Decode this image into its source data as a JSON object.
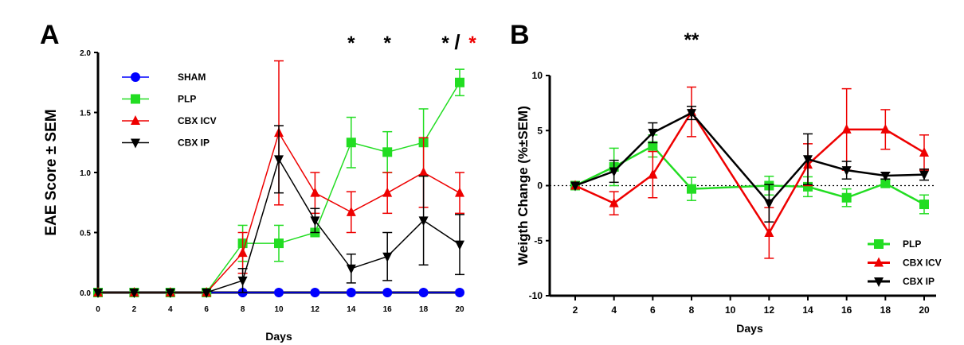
{
  "chart_data": [
    {
      "panel_label": "A",
      "type": "line",
      "xlabel": "Days",
      "ylabel": "EAE Score ± SEM",
      "x": [
        0,
        2,
        4,
        6,
        8,
        10,
        12,
        14,
        16,
        18,
        20
      ],
      "xticks": [
        "0",
        "2",
        "4",
        "6",
        "8",
        "10",
        "12",
        "14",
        "16",
        "18",
        "20"
      ],
      "yticks": [
        "0.0",
        "0.5",
        "1.0",
        "1.5",
        "2.0"
      ],
      "ylim": [
        0,
        2
      ],
      "xlim": [
        0,
        20
      ],
      "legend_position": "top-left",
      "series": [
        {
          "name": "SHAM",
          "color": "#0000ff",
          "marker": "circle",
          "values": [
            0,
            0,
            0,
            0,
            0,
            0,
            0,
            0,
            0,
            0,
            0
          ],
          "sem": [
            0,
            0,
            0,
            0,
            0,
            0,
            0,
            0,
            0,
            0,
            0
          ]
        },
        {
          "name": "PLP",
          "color": "#22dd22",
          "marker": "square",
          "values": [
            0,
            0,
            0,
            0,
            0.41,
            0.41,
            0.5,
            1.25,
            1.17,
            1.25,
            1.75
          ],
          "sem": [
            0,
            0,
            0,
            0,
            0.15,
            0.15,
            0.02,
            0.21,
            0.17,
            0.28,
            0.11
          ]
        },
        {
          "name": "CBX ICV",
          "color": "#ee0000",
          "marker": "triangle-up",
          "values": [
            0,
            0,
            0,
            0,
            0.33,
            1.33,
            0.83,
            0.67,
            0.83,
            1.0,
            0.83
          ],
          "sem": [
            0,
            0,
            0,
            0,
            0.17,
            0.6,
            0.17,
            0.17,
            0.17,
            0.29,
            0.17
          ]
        },
        {
          "name": "CBX IP",
          "color": "#000000",
          "marker": "triangle-down",
          "values": [
            0,
            0,
            0,
            0,
            0.1,
            1.11,
            0.6,
            0.2,
            0.3,
            0.6,
            0.4
          ],
          "sem": [
            0,
            0,
            0,
            0,
            0.1,
            0.28,
            0.1,
            0.12,
            0.2,
            0.37,
            0.25
          ]
        }
      ],
      "annotations": [
        {
          "x": 14,
          "text": "*",
          "color": "#000000"
        },
        {
          "x": 16,
          "text": "*",
          "color": "#000000"
        },
        {
          "x": 20,
          "text": "*",
          "color": "#000000"
        },
        {
          "x": 20,
          "text": "/",
          "color": "#000000"
        },
        {
          "x": 20,
          "text": "*",
          "color": "#ee0000"
        }
      ]
    },
    {
      "panel_label": "B",
      "type": "line",
      "xlabel": "Days",
      "ylabel": "Weigth Change (%±SEM)",
      "xticks": [
        "2",
        "4",
        "6",
        "8",
        "10",
        "12",
        "14",
        "16",
        "18",
        "20"
      ],
      "yticks": [
        "-10",
        "-5",
        "0",
        "5",
        "10"
      ],
      "ylim": [
        -10,
        10
      ],
      "xlim": [
        2,
        20
      ],
      "zero_line": "dotted",
      "legend_position": "bottom-right",
      "series": [
        {
          "name": "PLP",
          "color": "#22dd22",
          "marker": "square",
          "x": [
            2,
            4,
            6,
            8,
            12,
            14,
            16,
            18,
            20
          ],
          "values": [
            0,
            1.7,
            3.6,
            -0.3,
            0,
            -0.1,
            -1.1,
            0.2,
            -1.7
          ],
          "sem": [
            0,
            1.7,
            1.0,
            1.05,
            0.85,
            0.9,
            0.8,
            0.3,
            0.85
          ]
        },
        {
          "name": "CBX ICV",
          "color": "#ee0000",
          "marker": "triangle-up",
          "x": [
            2,
            4,
            6,
            8,
            12,
            14,
            16,
            18,
            20
          ],
          "values": [
            0,
            -1.6,
            1.0,
            6.7,
            -4.3,
            1.9,
            5.1,
            5.1,
            3.0
          ],
          "sem": [
            0,
            1.05,
            2.1,
            2.25,
            2.3,
            1.9,
            3.7,
            1.8,
            1.6
          ]
        },
        {
          "name": "CBX IP",
          "color": "#000000",
          "marker": "triangle-down",
          "x": [
            2,
            4,
            6,
            8,
            12,
            14,
            16,
            18,
            20
          ],
          "values": [
            0,
            1.3,
            4.8,
            6.6,
            -1.6,
            2.4,
            1.4,
            0.9,
            1.0
          ],
          "sem": [
            0,
            1.0,
            0.9,
            0.6,
            1.7,
            2.3,
            0.8,
            0.3,
            0.5
          ]
        }
      ],
      "annotations": [
        {
          "x": 8,
          "text": "**",
          "color": "#000000"
        }
      ]
    }
  ]
}
